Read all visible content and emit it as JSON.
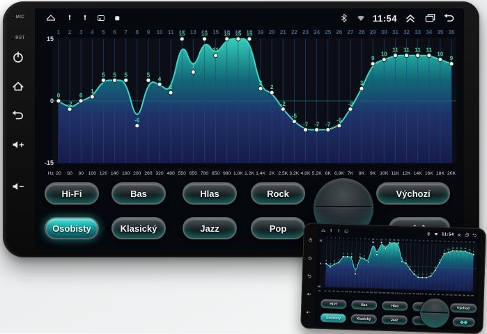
{
  "device": {
    "bezel": {
      "mic_label": "MIC",
      "rst_label": "RST"
    },
    "status_bar": {
      "time": "11:54",
      "left_icons": [
        "home-icon",
        "pin-icon",
        "pin-icon",
        "sd-card-icon",
        "storage-icon"
      ],
      "right_icons": [
        "bluetooth-icon",
        "wifi-icon",
        "chevron-up-double-icon",
        "recents-icon",
        "back-icon"
      ]
    },
    "presets": {
      "row1": [
        "Hi-Fi",
        "Bas",
        "Hlas",
        "Rock"
      ],
      "row2": [
        "Osobisty",
        "Klasický",
        "Jazz",
        "Pop"
      ],
      "selected": "Osobisty",
      "default_label": "Výchozí",
      "speaker_icon_glyph": "◆◆"
    }
  },
  "chart_data": {
    "type": "line",
    "band_numbers": [
      1,
      2,
      3,
      4,
      5,
      6,
      7,
      8,
      9,
      10,
      11,
      12,
      13,
      14,
      15,
      16,
      17,
      18,
      19,
      20,
      21,
      22,
      23,
      24,
      25,
      26,
      27,
      28,
      29,
      30,
      31,
      32,
      33,
      34,
      35,
      36
    ],
    "values": [
      0,
      -2,
      0,
      1,
      5,
      5,
      5,
      -6,
      5,
      4,
      2,
      15,
      7,
      15,
      11,
      15,
      15,
      15,
      3,
      2,
      -2,
      -5,
      -7,
      -7,
      -7,
      -6,
      -2,
      3,
      9,
      10,
      11,
      11,
      11,
      11,
      10,
      9
    ],
    "x_unit_label": "Hz",
    "x_tick_labels": [
      "20",
      "60",
      "80",
      "100",
      "120",
      "140",
      "160",
      "200",
      "260",
      "320",
      "480",
      "550",
      "650",
      "780",
      "850",
      "980",
      "1.0K",
      "1.2K",
      "1.4K",
      "2K",
      "2.5K",
      "3.2K",
      "4.8K",
      "5.2K",
      "6K",
      "6.8K",
      "7K",
      "8K",
      "9K",
      "10K",
      "11K",
      "12K",
      "14K",
      "16K",
      "18K",
      "20K"
    ],
    "ylim": [
      -15,
      15
    ],
    "y_ticks": [
      "15",
      "0",
      "-15"
    ],
    "line_color": "#38d7c4",
    "dot_color": "#ffffff",
    "value_label_color": "#3fdc9e",
    "band_number_color": "#35688f",
    "grid_color": "#234a80",
    "fill_gradient": [
      "#34d8c2",
      "#11707f",
      "#20356f",
      "#161c4a"
    ]
  },
  "colors": {
    "accent": "#2fd5c8",
    "selected_button": "#18a7a4",
    "screen_bg": "#05080c"
  }
}
